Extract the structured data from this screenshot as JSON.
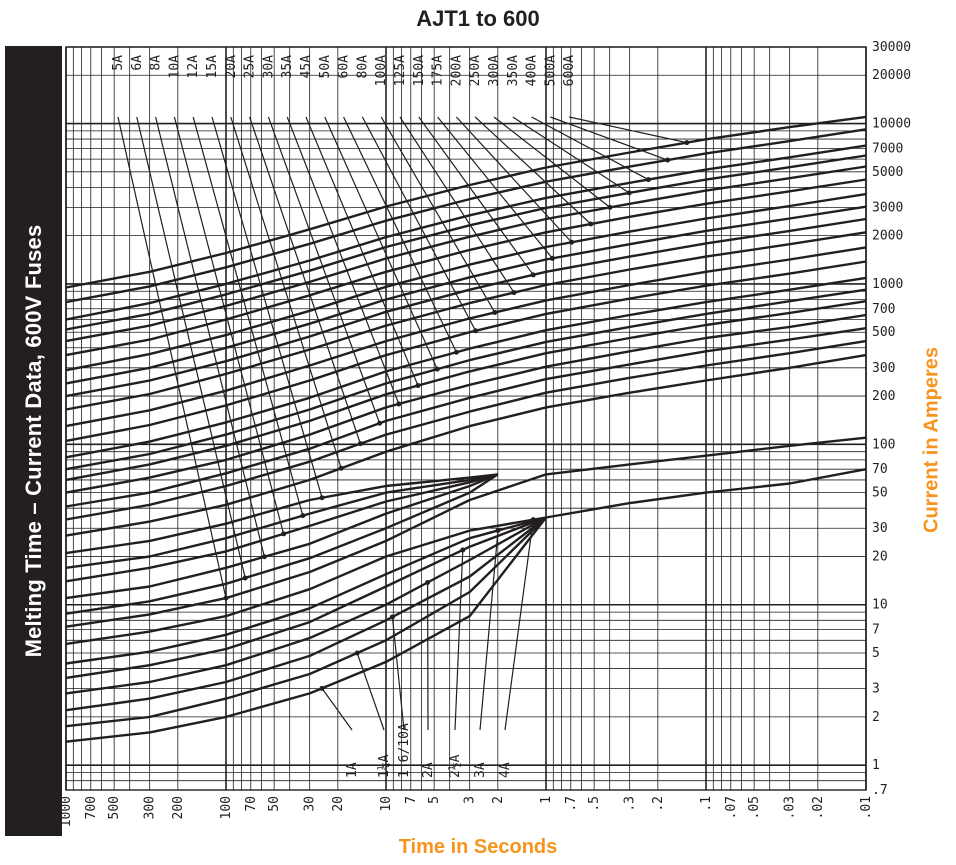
{
  "chart_data": {
    "type": "line",
    "title": "AJT1 to 600",
    "side_title": "Melting Time – Current Data, 600V Fuses",
    "xlabel": "Time in Seconds",
    "ylabel": "Current in Amperes",
    "x_scale": "log",
    "y_scale": "log",
    "x_reversed": true,
    "xlim": [
      1000,
      0.01
    ],
    "ylim": [
      0.7,
      30000
    ],
    "grid": true,
    "accent_color": "#f7941d",
    "line_color": "#231f20",
    "x_ticks": [
      "1000",
      "700",
      "500",
      "300",
      "200",
      "100",
      "70",
      "50",
      "30",
      "20",
      "10",
      "7",
      "5",
      "3",
      "2",
      "1",
      ".7",
      ".5",
      ".3",
      ".2",
      ".1",
      ".07",
      ".05",
      ".03",
      ".02",
      ".01"
    ],
    "y_ticks": [
      ".7",
      "1",
      "2",
      "3",
      "5",
      "7",
      "10",
      "20",
      "30",
      "50",
      "70",
      "100",
      "200",
      "300",
      "500",
      "700",
      "1000",
      "2000",
      "3000",
      "5000",
      "7000",
      "10000",
      "20000",
      "30000"
    ],
    "series": [
      {
        "name": "1A",
        "label_text": "1A",
        "x": [
          1000,
          300,
          100,
          30,
          10,
          3,
          1,
          0.3,
          0.1,
          0.03,
          0.01
        ],
        "y": [
          1.4,
          1.6,
          2.0,
          2.8,
          4.4,
          8.5,
          35,
          43,
          50,
          57,
          70
        ]
      },
      {
        "name": "1¼A",
        "label_text": "1¼A",
        "x": [
          1000,
          300,
          100,
          30,
          10,
          3,
          1.0
        ],
        "y": [
          1.75,
          2.0,
          2.6,
          3.7,
          6,
          12,
          35
        ]
      },
      {
        "name": "1 6/10A",
        "label_text": "1 6/10A",
        "x": [
          1000,
          300,
          100,
          30,
          10,
          3,
          1.0
        ],
        "y": [
          2.2,
          2.6,
          3.3,
          4.8,
          8,
          15,
          35
        ]
      },
      {
        "name": "2A",
        "label_text": "2A",
        "x": [
          1000,
          300,
          100,
          30,
          10,
          3,
          1.0
        ],
        "y": [
          2.8,
          3.3,
          4.2,
          6.2,
          10,
          19,
          35
        ]
      },
      {
        "name": "2½A",
        "label_text": "2½A",
        "x": [
          1000,
          300,
          100,
          30,
          10,
          3,
          1.0
        ],
        "y": [
          3.5,
          4.2,
          5.3,
          7.8,
          13,
          23,
          35
        ]
      },
      {
        "name": "3A",
        "label_text": "3A",
        "x": [
          1000,
          300,
          100,
          30,
          10,
          3,
          1.0
        ],
        "y": [
          4.3,
          5.1,
          6.5,
          9.5,
          15.5,
          26,
          35
        ]
      },
      {
        "name": "4A",
        "label_text": "4A",
        "x": [
          1000,
          300,
          100,
          30,
          10,
          3,
          1.0
        ],
        "y": [
          5.7,
          6.8,
          8.5,
          12.5,
          20,
          29,
          35
        ]
      },
      {
        "name": "5A",
        "label_text": "5A",
        "x": [
          1000,
          300,
          100,
          30,
          10,
          3,
          1,
          0.3,
          0.1,
          0.03,
          0.01
        ],
        "y": [
          7.3,
          8.7,
          11,
          16,
          25,
          45,
          65,
          75,
          85,
          98,
          110
        ]
      },
      {
        "name": "6A",
        "label_text": "6A",
        "x": [
          1000,
          300,
          100,
          30,
          10,
          3,
          2.0
        ],
        "y": [
          8.8,
          10.5,
          13.5,
          19.5,
          30,
          50,
          65
        ]
      },
      {
        "name": "8A",
        "label_text": "8A",
        "x": [
          1000,
          300,
          100,
          30,
          10,
          3,
          2.0
        ],
        "y": [
          11,
          13,
          17,
          24,
          37,
          55,
          65
        ]
      },
      {
        "name": "10A",
        "label_text": "10A",
        "x": [
          1000,
          300,
          100,
          30,
          10,
          3,
          2.0
        ],
        "y": [
          14,
          17,
          21.5,
          31,
          44,
          58,
          65
        ]
      },
      {
        "name": "12A",
        "label_text": "12A",
        "x": [
          1000,
          300,
          100,
          30,
          10,
          3,
          2.0
        ],
        "y": [
          17,
          20,
          26,
          37,
          50,
          60,
          65
        ]
      },
      {
        "name": "15A",
        "label_text": "15A",
        "x": [
          1000,
          300,
          100,
          30,
          10,
          3,
          2.0
        ],
        "y": [
          21,
          25,
          32,
          45,
          55,
          62,
          65
        ]
      },
      {
        "name": "20A",
        "label_text": "20A",
        "x": [
          1000,
          300,
          100,
          30,
          10,
          3,
          1,
          0.3,
          0.1,
          0.03,
          0.01
        ],
        "y": [
          27,
          33,
          42,
          60,
          90,
          130,
          170,
          210,
          250,
          300,
          360
        ]
      },
      {
        "name": "25A",
        "label_text": "25A",
        "x": [
          1000,
          300,
          100,
          30,
          10,
          3,
          1,
          0.3,
          0.1,
          0.03,
          0.01
        ],
        "y": [
          34,
          42,
          55,
          78,
          115,
          160,
          210,
          260,
          310,
          370,
          440
        ]
      },
      {
        "name": "30A",
        "label_text": "30A",
        "x": [
          1000,
          300,
          100,
          30,
          10,
          3,
          1,
          0.3,
          0.1,
          0.03,
          0.01
        ],
        "y": [
          41,
          50,
          66,
          94,
          140,
          195,
          255,
          315,
          380,
          450,
          530
        ]
      },
      {
        "name": "35A",
        "label_text": "35A",
        "x": [
          1000,
          300,
          100,
          30,
          10,
          3,
          1,
          0.3,
          0.1,
          0.03,
          0.01
        ],
        "y": [
          50,
          62,
          80,
          115,
          170,
          235,
          305,
          380,
          460,
          540,
          640
        ]
      },
      {
        "name": "45A",
        "label_text": "45A",
        "x": [
          1000,
          300,
          100,
          30,
          10,
          3,
          1,
          0.3,
          0.1,
          0.03,
          0.01
        ],
        "y": [
          60,
          75,
          98,
          140,
          205,
          285,
          370,
          460,
          555,
          660,
          780
        ]
      },
      {
        "name": "50A",
        "label_text": "50A",
        "x": [
          1000,
          300,
          100,
          30,
          10,
          3,
          1,
          0.3,
          0.1,
          0.03,
          0.01
        ],
        "y": [
          70,
          87,
          115,
          165,
          240,
          335,
          435,
          540,
          650,
          780,
          920
        ]
      },
      {
        "name": "60A",
        "label_text": "60A",
        "x": [
          1000,
          300,
          100,
          30,
          10,
          3,
          1,
          0.3,
          0.1,
          0.03,
          0.01
        ],
        "y": [
          83,
          104,
          137,
          195,
          285,
          395,
          515,
          640,
          770,
          920,
          1090
        ]
      },
      {
        "name": "80A",
        "label_text": "80A",
        "x": [
          1000,
          300,
          100,
          30,
          10,
          3,
          1,
          0.3,
          0.1,
          0.03,
          0.01
        ],
        "y": [
          105,
          132,
          175,
          250,
          360,
          500,
          650,
          810,
          975,
          1160,
          1380
        ]
      },
      {
        "name": "100A",
        "label_text": "100A",
        "x": [
          1000,
          300,
          100,
          30,
          10,
          3,
          1,
          0.3,
          0.1,
          0.03,
          0.01
        ],
        "y": [
          130,
          163,
          216,
          310,
          440,
          610,
          790,
          985,
          1190,
          1420,
          1690
        ]
      },
      {
        "name": "125A",
        "label_text": "125A",
        "x": [
          1000,
          300,
          100,
          30,
          10,
          3,
          1,
          0.3,
          0.1,
          0.03,
          0.01
        ],
        "y": [
          165,
          206,
          275,
          390,
          550,
          760,
          985,
          1230,
          1480,
          1770,
          2100
        ]
      },
      {
        "name": "150A",
        "label_text": "150A",
        "x": [
          1000,
          300,
          100,
          30,
          10,
          3,
          1,
          0.3,
          0.1,
          0.03,
          0.01
        ],
        "y": [
          200,
          250,
          330,
          470,
          670,
          920,
          1190,
          1480,
          1790,
          2140,
          2540
        ]
      },
      {
        "name": "175A",
        "label_text": "175A",
        "x": [
          1000,
          300,
          100,
          30,
          10,
          3,
          1,
          0.3,
          0.1,
          0.03,
          0.01
        ],
        "y": [
          240,
          300,
          400,
          565,
          800,
          1100,
          1420,
          1770,
          2140,
          2560,
          3030
        ]
      },
      {
        "name": "200A",
        "label_text": "200A",
        "x": [
          1000,
          300,
          100,
          30,
          10,
          3,
          1,
          0.3,
          0.1,
          0.03,
          0.01
        ],
        "y": [
          290,
          365,
          480,
          680,
          960,
          1320,
          1700,
          2120,
          2560,
          3060,
          3630
        ]
      },
      {
        "name": "250A",
        "label_text": "250A",
        "x": [
          1000,
          300,
          100,
          30,
          10,
          3,
          1,
          0.3,
          0.1,
          0.03,
          0.01
        ],
        "y": [
          360,
          450,
          600,
          850,
          1190,
          1630,
          2100,
          2620,
          3160,
          3780,
          4480
        ]
      },
      {
        "name": "300A",
        "label_text": "300A",
        "x": [
          1000,
          300,
          100,
          30,
          10,
          3,
          1,
          0.3,
          0.1,
          0.03,
          0.01
        ],
        "y": [
          440,
          550,
          730,
          1030,
          1440,
          1970,
          2540,
          3160,
          3820,
          4560,
          5400
        ]
      },
      {
        "name": "350A",
        "label_text": "350A",
        "x": [
          1000,
          300,
          100,
          30,
          10,
          3,
          1,
          0.3,
          0.1,
          0.03,
          0.01
        ],
        "y": [
          520,
          650,
          860,
          1210,
          1700,
          2320,
          2980,
          3700,
          4470,
          5340,
          6320
        ]
      },
      {
        "name": "400A",
        "label_text": "400A",
        "x": [
          1000,
          300,
          100,
          30,
          10,
          3,
          1,
          0.3,
          0.1,
          0.03,
          0.01
        ],
        "y": [
          600,
          760,
          1000,
          1400,
          1960,
          2680,
          3440,
          4270,
          5160,
          6160,
          7290
        ]
      },
      {
        "name": "500A",
        "label_text": "500A",
        "x": [
          1000,
          300,
          100,
          30,
          10,
          3,
          1,
          0.3,
          0.1,
          0.03,
          0.01
        ],
        "y": [
          770,
          965,
          1270,
          1780,
          2480,
          3380,
          4340,
          5390,
          6510,
          7770,
          9200
        ]
      },
      {
        "name": "600A",
        "label_text": "600A",
        "x": [
          1000,
          300,
          100,
          30,
          10,
          3,
          1,
          0.3,
          0.1,
          0.03,
          0.01
        ],
        "y": [
          950,
          1190,
          1560,
          2190,
          3040,
          4140,
          5320,
          6600,
          7970,
          9500,
          11000
        ]
      }
    ],
    "top_labels": [
      "5A",
      "6A",
      "8A",
      "10A",
      "12A",
      "15A",
      "20A",
      "25A",
      "30A",
      "35A",
      "45A",
      "50A",
      "60A",
      "80A",
      "100A",
      "125A",
      "150A",
      "175A",
      "200A",
      "250A",
      "300A",
      "350A",
      "400A",
      "500A",
      "600A"
    ],
    "bottom_labels": [
      "1A",
      "1¼A",
      "1 6/10A",
      "2A",
      "2½A",
      "3A",
      "4A"
    ]
  }
}
